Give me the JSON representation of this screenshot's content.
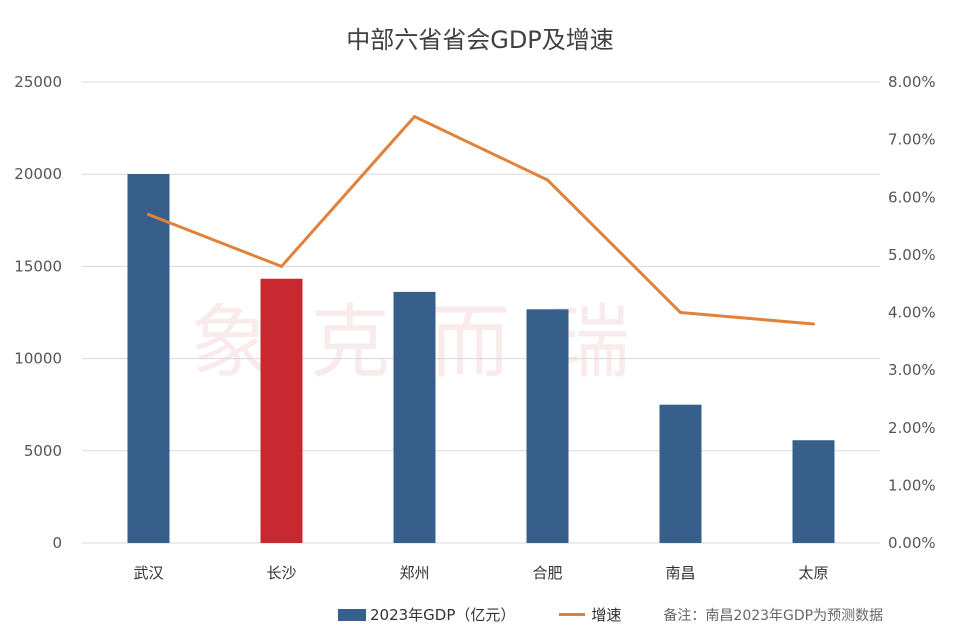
{
  "chart_data": {
    "type": "bar+line",
    "title": "中部六省省会GDP及增速",
    "categories": [
      "武汉",
      "长沙",
      "郑州",
      "合肥",
      "南昌",
      "太原"
    ],
    "series": [
      {
        "name": "2023年GDP（亿元）",
        "type": "bar",
        "axis": "left",
        "values": [
          20011,
          14331,
          13617,
          12673,
          7500,
          5573
        ],
        "color": "#365F8C",
        "highlight": {
          "category": "长沙",
          "color": "#C8282F"
        }
      },
      {
        "name": "增速",
        "type": "line",
        "axis": "right",
        "values": [
          5.7,
          4.8,
          7.4,
          6.3,
          4.0,
          3.8
        ],
        "color": "#E0823C"
      }
    ],
    "y_left": {
      "ylim": [
        0,
        25000
      ],
      "ticks": [
        "0",
        "5000",
        "10000",
        "15000",
        "20000",
        "25000"
      ]
    },
    "y_right": {
      "ylim": [
        0,
        8
      ],
      "ticks": [
        "0.00%",
        "1.00%",
        "2.00%",
        "3.00%",
        "4.00%",
        "5.00%",
        "6.00%",
        "7.00%",
        "8.00%"
      ]
    },
    "grid": true,
    "legend": "bottom",
    "note": "备注：南昌2023年GDP为预测数据",
    "watermark": "克而瑞"
  }
}
